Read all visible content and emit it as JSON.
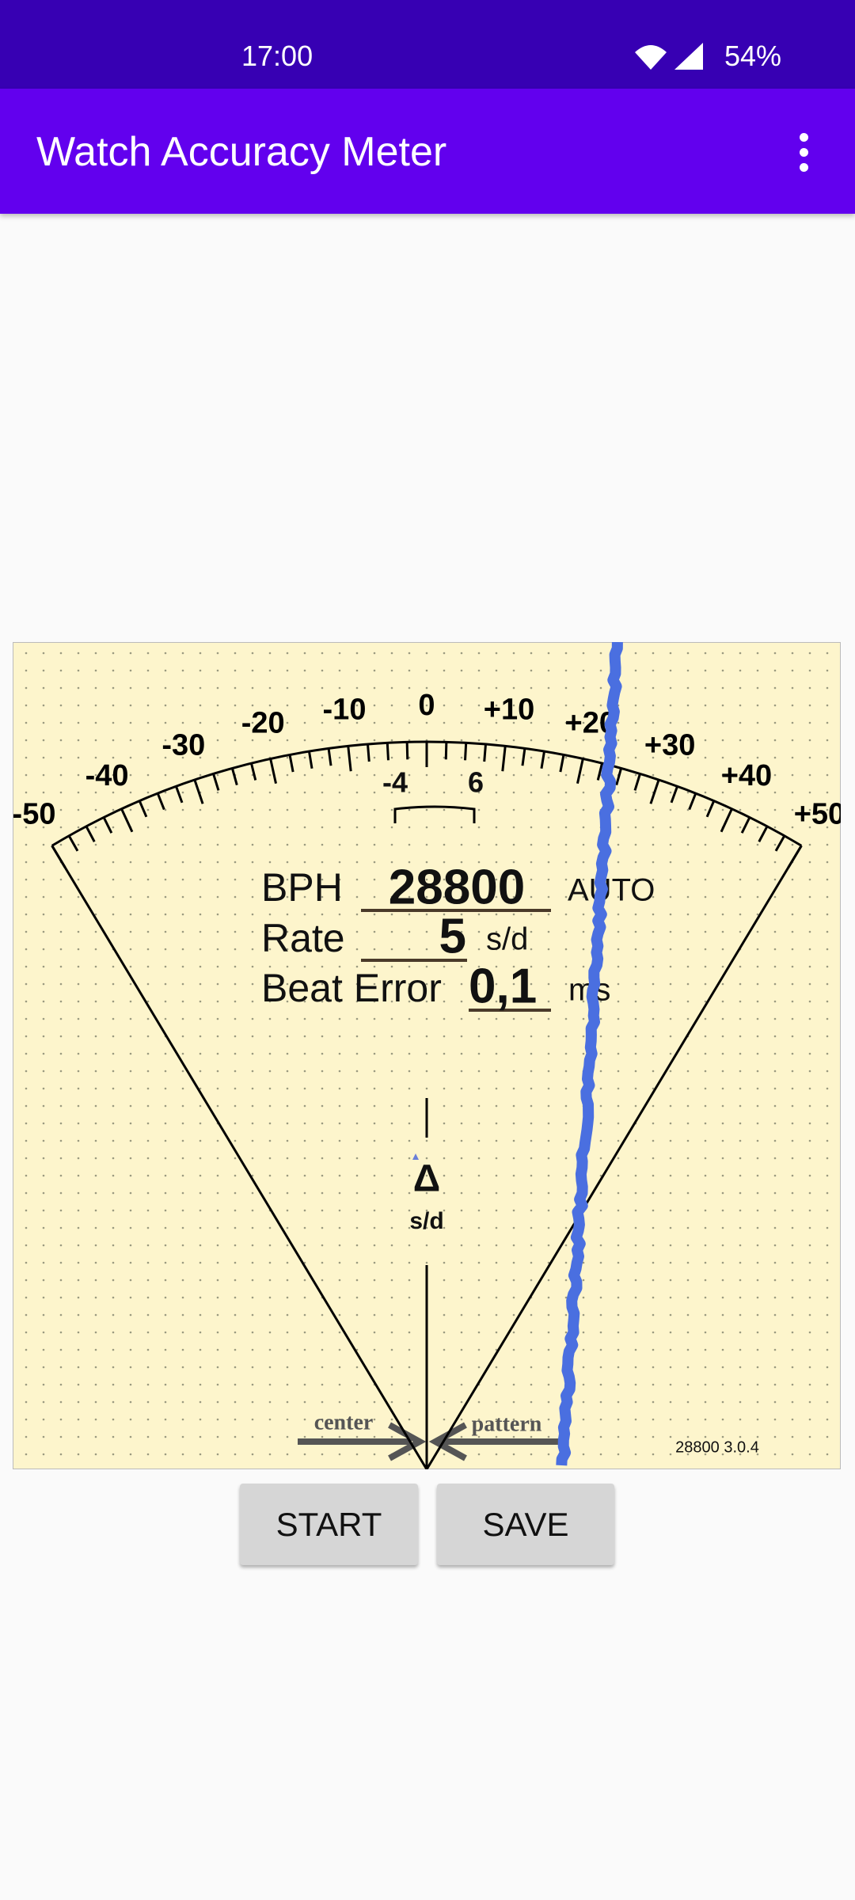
{
  "status_bar": {
    "time": "17:00",
    "battery": "54%"
  },
  "app_bar": {
    "title": "Watch Accuracy Meter"
  },
  "dial": {
    "scale_labels": [
      "-50",
      "-40",
      "-30",
      "-20",
      "-10",
      "0",
      "+10",
      "+20",
      "+30",
      "+40",
      "+50"
    ],
    "window_labels": [
      "-4",
      "6"
    ],
    "readout": {
      "bph_label": "BPH",
      "bph_value": "28800",
      "bph_mode": "AUTO",
      "rate_label": "Rate",
      "rate_value": "5",
      "rate_unit": "s/d",
      "beat_error_label": "Beat Error",
      "beat_error_value": "0,1",
      "beat_error_unit": "ms"
    },
    "delta_symbol": "Δ",
    "delta_unit": "s/d",
    "center_label": "center",
    "pattern_label": "pattern",
    "version": "28800 3.0.4"
  },
  "buttons": [
    "START",
    "SAVE"
  ]
}
